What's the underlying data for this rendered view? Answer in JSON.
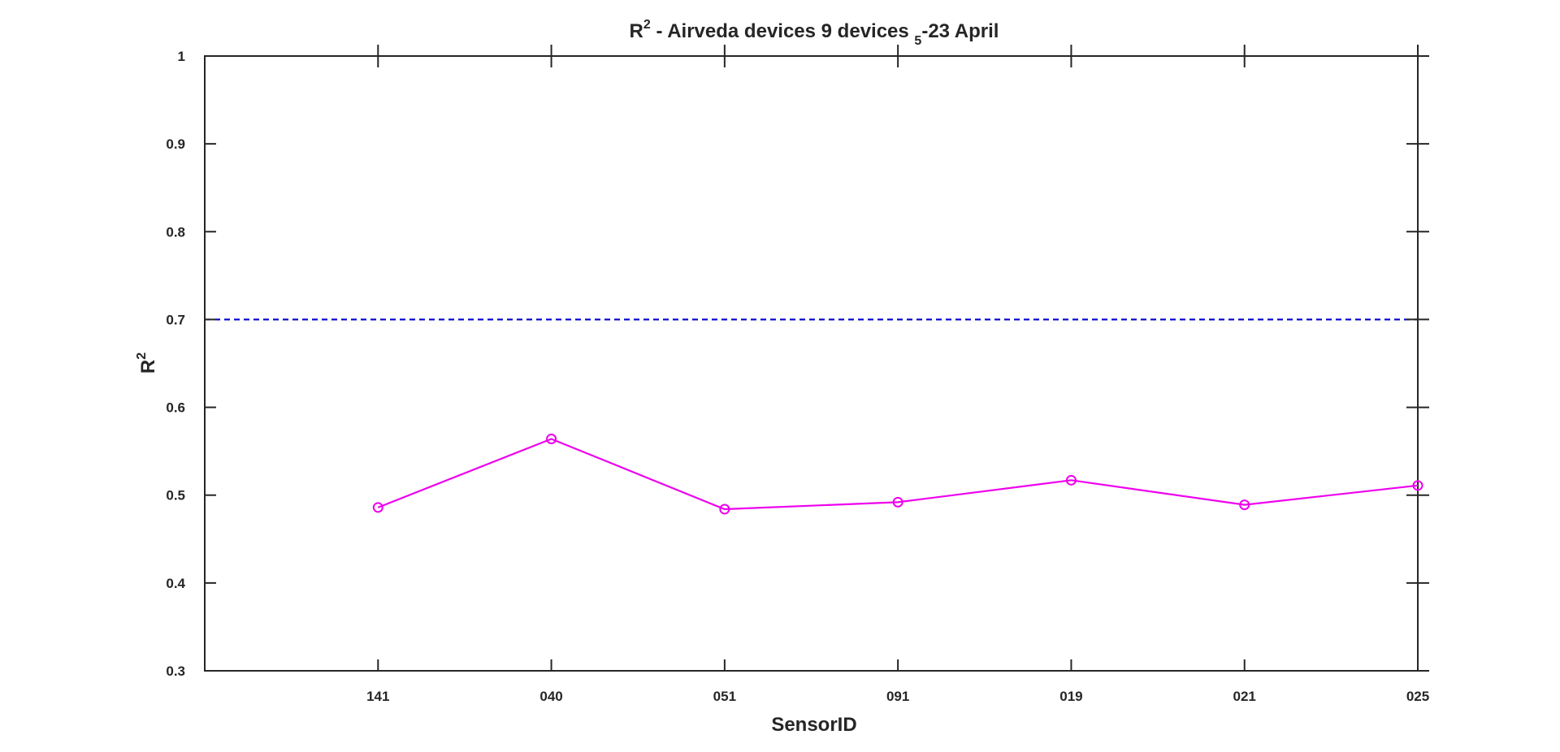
{
  "chart_data": {
    "type": "line",
    "title": {
      "base": "R",
      "sup": "2",
      "middle": " - Airveda devices 9 devices ",
      "sub": "5",
      "tail": "-23 April"
    },
    "xlabel": "SensorID",
    "ylabel": {
      "base": "R",
      "sup": "2"
    },
    "categories": [
      "141",
      "040",
      "051",
      "091",
      "019",
      "021",
      "025"
    ],
    "series": [
      {
        "values": [
          0.486,
          0.564,
          0.484,
          0.492,
          0.517,
          0.489,
          0.511
        ],
        "color": "#ee00ee",
        "marker": "circle"
      }
    ],
    "reference_line": {
      "y": 0.7,
      "color": "#0000cc",
      "style": "dashed"
    },
    "ylim": [
      0.3,
      1
    ],
    "yticks": [
      "0.3",
      "0.4",
      "0.5",
      "0.6",
      "0.7",
      "0.8",
      "0.9",
      "1"
    ],
    "ytick_values": [
      0.3,
      0.4,
      0.5,
      0.6,
      0.7,
      0.8,
      0.9,
      1.0
    ],
    "x_index_range": [
      0,
      7
    ],
    "grid": false,
    "box": true
  }
}
